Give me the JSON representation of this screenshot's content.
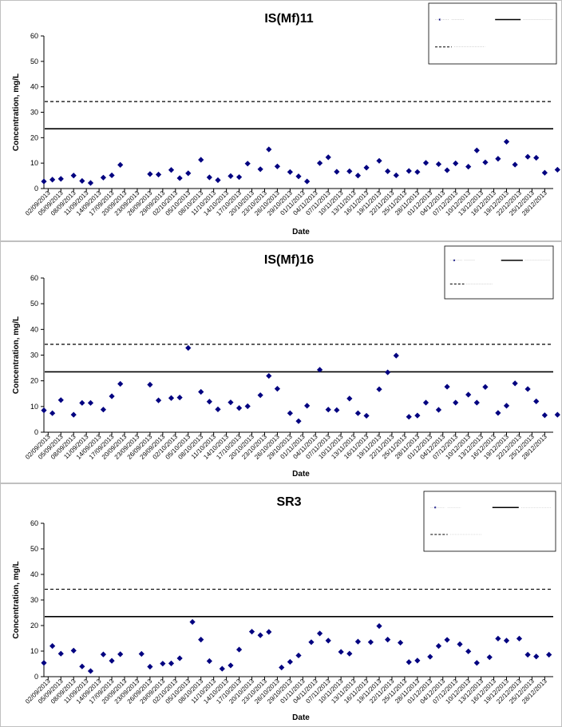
{
  "xlabel": "Date",
  "ylabel": "Concentration, mg/L",
  "chart_data": [
    {
      "type": "scatter",
      "title": "IS(Mf)11",
      "xlabel": "Date",
      "ylabel": "Concentration, mg/L",
      "ylim": [
        0,
        60
      ],
      "yticks": [
        0,
        10,
        20,
        30,
        40,
        50,
        60
      ],
      "xlim": [
        "2013-09-01",
        "2013-12-30"
      ],
      "xtick_labels": [
        "02/09/2013",
        "05/09/2013",
        "08/09/2013",
        "11/09/2013",
        "14/09/2013",
        "17/09/2013",
        "20/09/2013",
        "23/09/2013",
        "26/09/2013",
        "29/09/2013",
        "02/10/2013",
        "05/10/2013",
        "08/10/2013",
        "11/10/2013",
        "14/10/2013",
        "17/10/2013",
        "20/10/2013",
        "23/10/2013",
        "26/10/2013",
        "29/10/2013",
        "01/11/2013",
        "04/11/2013",
        "07/11/2013",
        "10/11/2013",
        "13/11/2013",
        "16/11/2013",
        "19/11/2013",
        "22/11/2013",
        "25/11/2013",
        "28/11/2013",
        "01/12/2013",
        "04/12/2013",
        "07/12/2013",
        "10/12/2013",
        "13/12/2013",
        "16/12/2013",
        "19/12/2013",
        "22/12/2013",
        "25/12/2013",
        "28/12/2013"
      ],
      "grid": false,
      "legend_position": "top-right",
      "reference_lines": [
        {
          "style": "solid",
          "value": 23.5
        },
        {
          "style": "dashed",
          "value": 34.2
        }
      ],
      "points": [
        {
          "x": "2013-09-01",
          "y": 2.8
        },
        {
          "x": "2013-09-03",
          "y": 3.5
        },
        {
          "x": "2013-09-05",
          "y": 3.8
        },
        {
          "x": "2013-09-08",
          "y": 5.1
        },
        {
          "x": "2013-09-10",
          "y": 3.0
        },
        {
          "x": "2013-09-12",
          "y": 2.2
        },
        {
          "x": "2013-09-15",
          "y": 4.3
        },
        {
          "x": "2013-09-17",
          "y": 5.2
        },
        {
          "x": "2013-09-19",
          "y": 9.3
        },
        {
          "x": "2013-09-26",
          "y": 5.7
        },
        {
          "x": "2013-09-28",
          "y": 5.5
        },
        {
          "x": "2013-10-01",
          "y": 7.3
        },
        {
          "x": "2013-10-03",
          "y": 4.1
        },
        {
          "x": "2013-10-05",
          "y": 6.0
        },
        {
          "x": "2013-10-08",
          "y": 11.3
        },
        {
          "x": "2013-10-10",
          "y": 4.4
        },
        {
          "x": "2013-10-12",
          "y": 3.3
        },
        {
          "x": "2013-10-15",
          "y": 4.9
        },
        {
          "x": "2013-10-17",
          "y": 4.5
        },
        {
          "x": "2013-10-19",
          "y": 9.8
        },
        {
          "x": "2013-10-22",
          "y": 7.6
        },
        {
          "x": "2013-10-24",
          "y": 15.4
        },
        {
          "x": "2013-10-26",
          "y": 8.7
        },
        {
          "x": "2013-10-29",
          "y": 6.5
        },
        {
          "x": "2013-10-31",
          "y": 4.8
        },
        {
          "x": "2013-11-02",
          "y": 2.8
        },
        {
          "x": "2013-11-05",
          "y": 10.0
        },
        {
          "x": "2013-11-07",
          "y": 12.3
        },
        {
          "x": "2013-11-09",
          "y": 6.6
        },
        {
          "x": "2013-11-12",
          "y": 6.8
        },
        {
          "x": "2013-11-14",
          "y": 5.1
        },
        {
          "x": "2013-11-16",
          "y": 8.2
        },
        {
          "x": "2013-11-19",
          "y": 10.9
        },
        {
          "x": "2013-11-21",
          "y": 6.8
        },
        {
          "x": "2013-11-23",
          "y": 5.2
        },
        {
          "x": "2013-11-26",
          "y": 6.9
        },
        {
          "x": "2013-11-28",
          "y": 6.5
        },
        {
          "x": "2013-11-30",
          "y": 10.1
        },
        {
          "x": "2013-12-03",
          "y": 9.6
        },
        {
          "x": "2013-12-05",
          "y": 7.2
        },
        {
          "x": "2013-12-07",
          "y": 9.9
        },
        {
          "x": "2013-12-10",
          "y": 8.6
        },
        {
          "x": "2013-12-12",
          "y": 15.0
        },
        {
          "x": "2013-12-14",
          "y": 10.3
        },
        {
          "x": "2013-12-17",
          "y": 11.7
        },
        {
          "x": "2013-12-19",
          "y": 18.4
        },
        {
          "x": "2013-12-21",
          "y": 9.4
        },
        {
          "x": "2013-12-24",
          "y": 12.5
        },
        {
          "x": "2013-12-26",
          "y": 12.1
        },
        {
          "x": "2013-12-28",
          "y": 6.2
        },
        {
          "x": "2013-12-31",
          "y": 7.4
        }
      ]
    },
    {
      "type": "scatter",
      "title": "IS(Mf)16",
      "xlabel": "Date",
      "ylabel": "Concentration, mg/L",
      "ylim": [
        0,
        60
      ],
      "yticks": [
        0,
        10,
        20,
        30,
        40,
        50,
        60
      ],
      "xlim": [
        "2013-09-01",
        "2013-12-30"
      ],
      "xtick_labels": [
        "02/09/2013",
        "05/09/2013",
        "08/09/2013",
        "11/09/2013",
        "14/09/2013",
        "17/09/2013",
        "20/09/2013",
        "23/09/2013",
        "26/09/2013",
        "29/09/2013",
        "02/10/2013",
        "05/10/2013",
        "08/10/2013",
        "11/10/2013",
        "14/10/2013",
        "17/10/2013",
        "20/10/2013",
        "23/10/2013",
        "26/10/2013",
        "29/10/2013",
        "01/11/2013",
        "04/11/2013",
        "07/11/2013",
        "10/11/2013",
        "13/11/2013",
        "16/11/2013",
        "19/11/2013",
        "22/11/2013",
        "25/11/2013",
        "28/11/2013",
        "01/12/2013",
        "04/12/2013",
        "07/12/2013",
        "10/12/2013",
        "13/12/2013",
        "16/12/2013",
        "19/12/2013",
        "22/12/2013",
        "25/12/2013",
        "28/12/2013"
      ],
      "grid": false,
      "legend_position": "top-right",
      "reference_lines": [
        {
          "style": "solid",
          "value": 23.5
        },
        {
          "style": "dashed",
          "value": 34.2
        }
      ],
      "points": [
        {
          "x": "2013-09-01",
          "y": 8.5
        },
        {
          "x": "2013-09-03",
          "y": 7.4
        },
        {
          "x": "2013-09-05",
          "y": 12.5
        },
        {
          "x": "2013-09-08",
          "y": 6.8
        },
        {
          "x": "2013-09-10",
          "y": 11.4
        },
        {
          "x": "2013-09-12",
          "y": 11.4
        },
        {
          "x": "2013-09-15",
          "y": 8.8
        },
        {
          "x": "2013-09-17",
          "y": 14.0
        },
        {
          "x": "2013-09-19",
          "y": 18.8
        },
        {
          "x": "2013-09-26",
          "y": 18.5
        },
        {
          "x": "2013-09-28",
          "y": 12.4
        },
        {
          "x": "2013-10-01",
          "y": 13.3
        },
        {
          "x": "2013-10-03",
          "y": 13.5
        },
        {
          "x": "2013-10-05",
          "y": 32.8
        },
        {
          "x": "2013-10-08",
          "y": 15.7
        },
        {
          "x": "2013-10-10",
          "y": 11.9
        },
        {
          "x": "2013-10-12",
          "y": 8.9
        },
        {
          "x": "2013-10-15",
          "y": 11.6
        },
        {
          "x": "2013-10-17",
          "y": 9.4
        },
        {
          "x": "2013-10-19",
          "y": 10.1
        },
        {
          "x": "2013-10-22",
          "y": 14.4
        },
        {
          "x": "2013-10-24",
          "y": 21.9
        },
        {
          "x": "2013-10-26",
          "y": 16.9
        },
        {
          "x": "2013-10-29",
          "y": 7.4
        },
        {
          "x": "2013-10-31",
          "y": 4.3
        },
        {
          "x": "2013-11-02",
          "y": 10.3
        },
        {
          "x": "2013-11-05",
          "y": 24.3
        },
        {
          "x": "2013-11-07",
          "y": 8.8
        },
        {
          "x": "2013-11-09",
          "y": 8.6
        },
        {
          "x": "2013-11-12",
          "y": 13.1
        },
        {
          "x": "2013-11-14",
          "y": 7.4
        },
        {
          "x": "2013-11-16",
          "y": 6.4
        },
        {
          "x": "2013-11-19",
          "y": 16.7
        },
        {
          "x": "2013-11-21",
          "y": 23.3
        },
        {
          "x": "2013-11-23",
          "y": 29.8
        },
        {
          "x": "2013-11-26",
          "y": 6.0
        },
        {
          "x": "2013-11-28",
          "y": 6.5
        },
        {
          "x": "2013-11-30",
          "y": 11.5
        },
        {
          "x": "2013-12-03",
          "y": 8.7
        },
        {
          "x": "2013-12-05",
          "y": 17.7
        },
        {
          "x": "2013-12-07",
          "y": 11.5
        },
        {
          "x": "2013-12-10",
          "y": 14.6
        },
        {
          "x": "2013-12-12",
          "y": 11.5
        },
        {
          "x": "2013-12-14",
          "y": 17.6
        },
        {
          "x": "2013-12-17",
          "y": 7.5
        },
        {
          "x": "2013-12-19",
          "y": 10.3
        },
        {
          "x": "2013-12-21",
          "y": 19.0
        },
        {
          "x": "2013-12-24",
          "y": 16.8
        },
        {
          "x": "2013-12-26",
          "y": 12.0
        },
        {
          "x": "2013-12-28",
          "y": 6.6
        },
        {
          "x": "2013-12-31",
          "y": 6.8
        }
      ]
    },
    {
      "type": "scatter",
      "title": "SR3",
      "xlabel": "Date",
      "ylabel": "Concentration, mg/L",
      "ylim": [
        0,
        60
      ],
      "yticks": [
        0,
        10,
        20,
        30,
        40,
        50,
        60
      ],
      "xlim": [
        "2013-09-01",
        "2013-12-30"
      ],
      "xtick_labels": [
        "02/09/2013",
        "05/09/2013",
        "08/09/2013",
        "11/09/2013",
        "14/09/2013",
        "17/09/2013",
        "20/09/2013",
        "23/09/2013",
        "26/09/2013",
        "29/09/2013",
        "02/10/2013",
        "05/10/2013",
        "08/10/2013",
        "11/10/2013",
        "14/10/2013",
        "17/10/2013",
        "20/10/2013",
        "23/10/2013",
        "26/10/2013",
        "29/10/2013",
        "01/11/2013",
        "04/11/2013",
        "07/11/2013",
        "10/11/2013",
        "13/11/2013",
        "16/11/2013",
        "19/11/2013",
        "22/11/2013",
        "25/11/2013",
        "28/11/2013",
        "01/12/2013",
        "04/12/2013",
        "07/12/2013",
        "10/12/2013",
        "13/12/2013",
        "16/12/2013",
        "19/12/2013",
        "22/12/2013",
        "25/12/2013",
        "28/12/2013"
      ],
      "grid": false,
      "legend_position": "top-right",
      "reference_lines": [
        {
          "style": "solid",
          "value": 23.5
        },
        {
          "style": "dashed",
          "value": 34.2
        }
      ],
      "points": [
        {
          "x": "2013-09-01",
          "y": 5.4
        },
        {
          "x": "2013-09-03",
          "y": 12.0
        },
        {
          "x": "2013-09-05",
          "y": 9.0
        },
        {
          "x": "2013-09-08",
          "y": 10.2
        },
        {
          "x": "2013-09-10",
          "y": 4.0
        },
        {
          "x": "2013-09-12",
          "y": 2.2
        },
        {
          "x": "2013-09-15",
          "y": 8.7
        },
        {
          "x": "2013-09-17",
          "y": 6.2
        },
        {
          "x": "2013-09-19",
          "y": 8.8
        },
        {
          "x": "2013-09-24",
          "y": 8.9
        },
        {
          "x": "2013-09-26",
          "y": 3.9
        },
        {
          "x": "2013-09-29",
          "y": 5.1
        },
        {
          "x": "2013-10-01",
          "y": 5.2
        },
        {
          "x": "2013-10-03",
          "y": 7.2
        },
        {
          "x": "2013-10-06",
          "y": 21.4
        },
        {
          "x": "2013-10-08",
          "y": 14.5
        },
        {
          "x": "2013-10-10",
          "y": 6.1
        },
        {
          "x": "2013-10-13",
          "y": 3.1
        },
        {
          "x": "2013-10-15",
          "y": 4.4
        },
        {
          "x": "2013-10-17",
          "y": 10.6
        },
        {
          "x": "2013-10-20",
          "y": 17.6
        },
        {
          "x": "2013-10-22",
          "y": 16.2
        },
        {
          "x": "2013-10-24",
          "y": 17.5
        },
        {
          "x": "2013-10-27",
          "y": 3.6
        },
        {
          "x": "2013-10-29",
          "y": 5.8
        },
        {
          "x": "2013-10-31",
          "y": 8.3
        },
        {
          "x": "2013-11-03",
          "y": 13.5
        },
        {
          "x": "2013-11-05",
          "y": 16.9
        },
        {
          "x": "2013-11-07",
          "y": 14.1
        },
        {
          "x": "2013-11-10",
          "y": 9.7
        },
        {
          "x": "2013-11-12",
          "y": 9.0
        },
        {
          "x": "2013-11-14",
          "y": 13.7
        },
        {
          "x": "2013-11-17",
          "y": 13.5
        },
        {
          "x": "2013-11-19",
          "y": 19.8
        },
        {
          "x": "2013-11-21",
          "y": 14.5
        },
        {
          "x": "2013-11-24",
          "y": 13.3
        },
        {
          "x": "2013-11-26",
          "y": 5.7
        },
        {
          "x": "2013-11-28",
          "y": 6.3
        },
        {
          "x": "2013-12-01",
          "y": 7.8
        },
        {
          "x": "2013-12-03",
          "y": 12.0
        },
        {
          "x": "2013-12-05",
          "y": 14.4
        },
        {
          "x": "2013-12-08",
          "y": 12.7
        },
        {
          "x": "2013-12-10",
          "y": 9.9
        },
        {
          "x": "2013-12-12",
          "y": 5.4
        },
        {
          "x": "2013-12-15",
          "y": 7.6
        },
        {
          "x": "2013-12-17",
          "y": 14.9
        },
        {
          "x": "2013-12-19",
          "y": 14.1
        },
        {
          "x": "2013-12-22",
          "y": 14.9
        },
        {
          "x": "2013-12-24",
          "y": 8.6
        },
        {
          "x": "2013-12-26",
          "y": 7.9
        },
        {
          "x": "2013-12-29",
          "y": 8.6
        }
      ]
    }
  ],
  "colors": {
    "marker": "#000080",
    "reference_line": "#000000",
    "frame": "#808080",
    "background": "#ffffff"
  }
}
